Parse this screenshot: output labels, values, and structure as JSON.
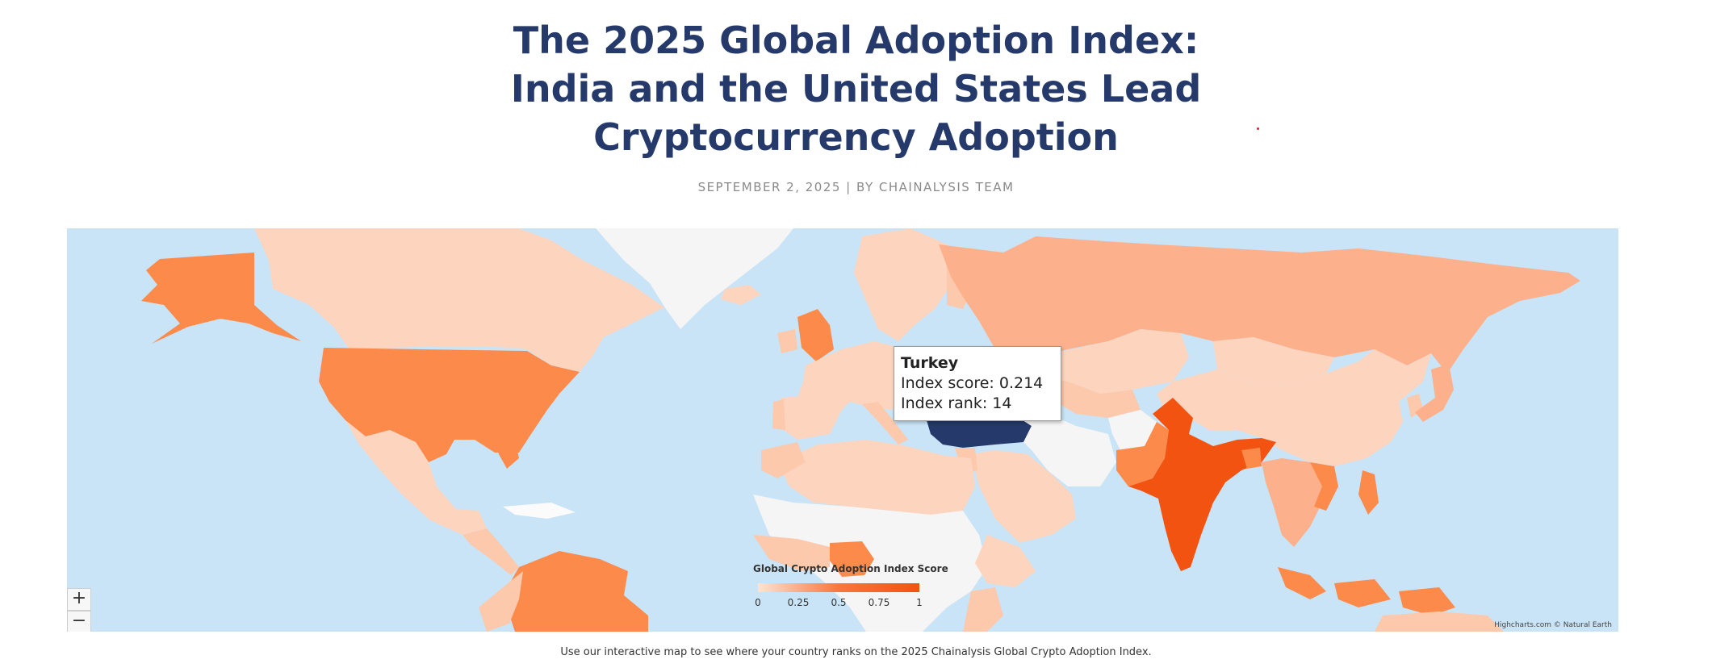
{
  "article": {
    "title_lines": [
      "The 2025 Global Adoption Index:",
      "India and the United States Lead",
      "Cryptocurrency Adoption"
    ],
    "byline": "SEPTEMBER 2, 2025 | BY CHAINALYSIS TEAM",
    "caption": "Use our interactive map to see where your country ranks on the 2025 Chainalysis Global Crypto Adoption Index."
  },
  "map": {
    "ocean_color": "#c9e4f6",
    "highlight_color": "#253a6b",
    "no_data_color": "#f5f5f5",
    "zoom_in_label": "+",
    "zoom_out_label": "−",
    "credits": "Highcharts.com © Natural Earth",
    "tooltip": {
      "country": "Turkey",
      "score_label": "Index score:",
      "score": "0.214",
      "rank_label": "Index rank:",
      "rank": "14"
    },
    "legend": {
      "title": "Global Crypto Adoption Index Score",
      "ticks": [
        "0",
        "0.25",
        "0.5",
        "0.75",
        "1"
      ],
      "color_min": "#fde3d3",
      "color_max": "#f35310"
    }
  }
}
